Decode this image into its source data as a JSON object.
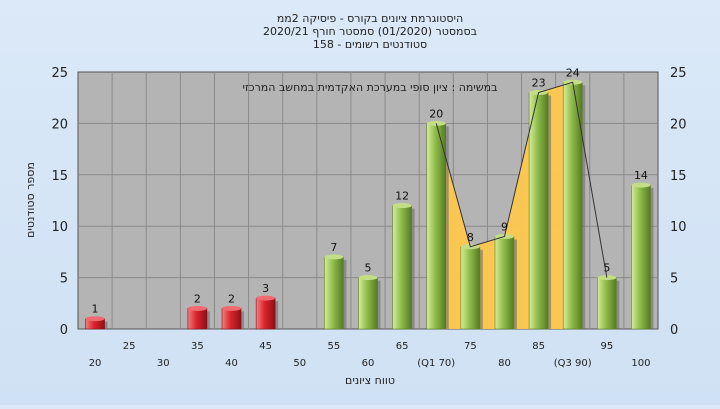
{
  "chart_data": {
    "type": "bar",
    "title_lines": [
      "היסטוגרמת ציונים בקורס - פיסיקה 2ממ",
      "בסמסטר  (01/2020)  סמסטר חורף  2020/21",
      "סטודנטים רשומים - 158"
    ],
    "annotation": "במשימה : ציון סופי במערכת האקדמית במחשב המרכזי",
    "ylabel": "מספר סטודנטים",
    "xlabel": "טווח ציונים",
    "ylim": [
      0,
      25
    ],
    "yticks": [
      0,
      5,
      10,
      15,
      20,
      25
    ],
    "x_tick_labels": [
      "20",
      "25",
      "30",
      "35",
      "40",
      "45",
      "50",
      "55",
      "60",
      "65",
      "(Q1 70)",
      "75",
      "80",
      "85",
      "(Q3 90)",
      "95",
      "100"
    ],
    "categories": [
      20,
      25,
      30,
      35,
      40,
      45,
      50,
      55,
      60,
      65,
      70,
      75,
      80,
      85,
      90,
      95,
      100
    ],
    "values": [
      1,
      0,
      0,
      2,
      2,
      3,
      0,
      7,
      5,
      12,
      20,
      8,
      9,
      23,
      24,
      5,
      14
    ],
    "bar_labels": [
      "1",
      "",
      "",
      "2",
      "2",
      "3",
      "",
      "7",
      "5",
      "12",
      "20",
      "8",
      "9",
      "23",
      "24",
      "5",
      "14"
    ],
    "fail_threshold": 55,
    "colors": {
      "plot_bg": "#b4b4b4",
      "fail_bar": "#d9232b",
      "pass_bar": "#8fbd4a",
      "band_fill": "#ffc84e",
      "line": "#333333"
    },
    "band_range": [
      70,
      90
    ],
    "line_range": [
      70,
      95
    ],
    "grid": true
  }
}
